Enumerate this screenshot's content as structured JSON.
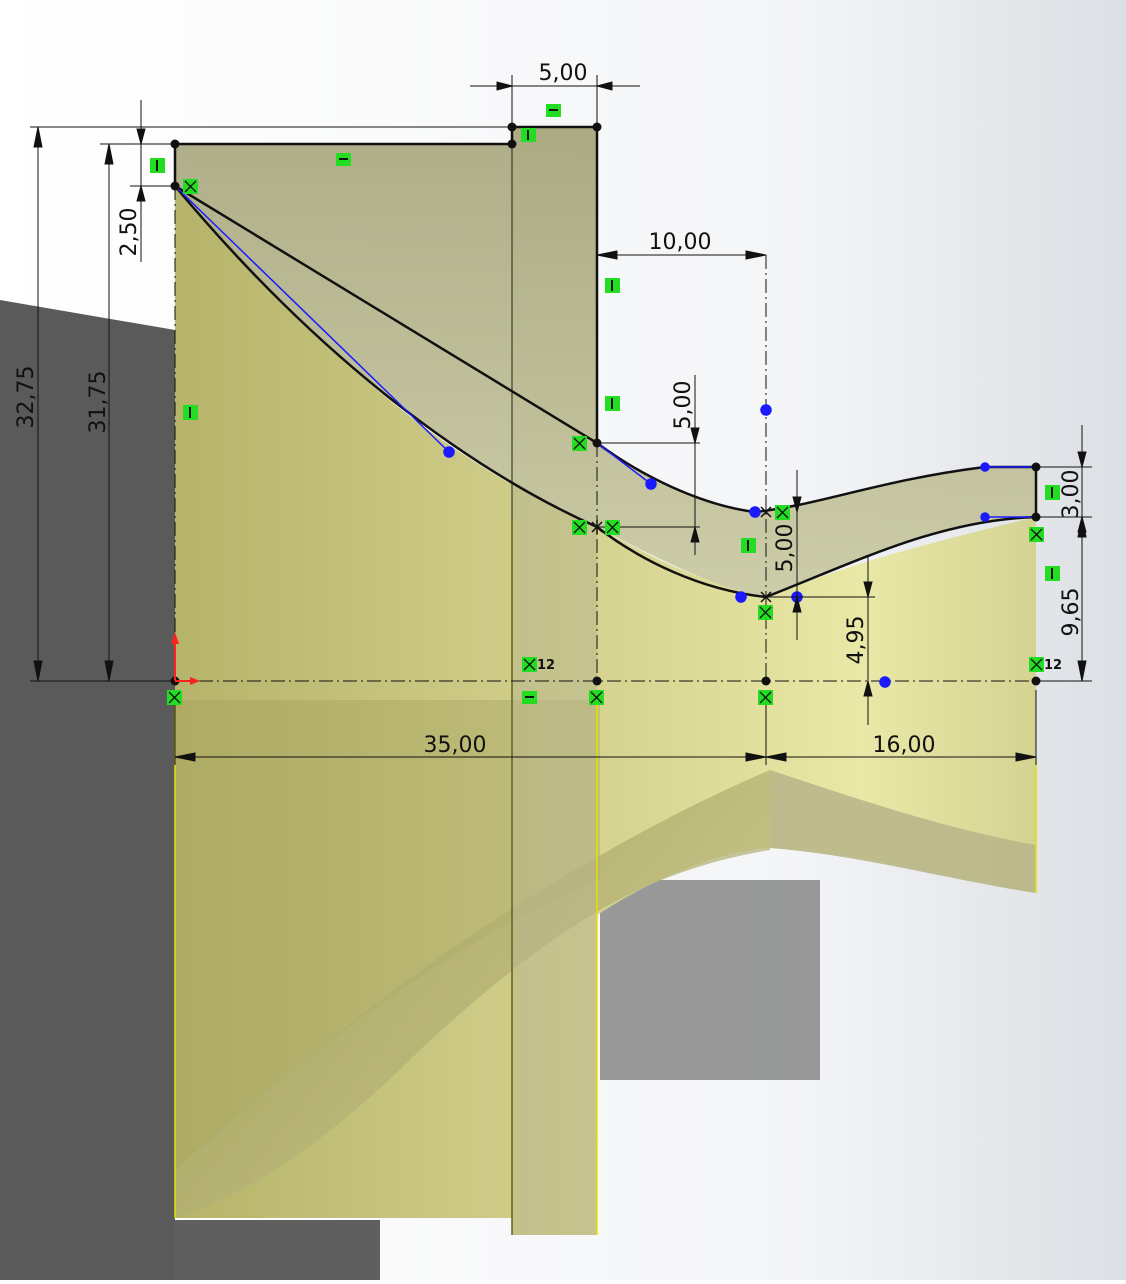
{
  "app": {
    "view": "sketch-on-revolved-part"
  },
  "colors": {
    "sketch_line": "#111111",
    "spline_handle": "#1a1aff",
    "relation_badge": "#22dd22",
    "origin_red": "#ff2020",
    "part_tint": "#c9c483"
  },
  "dimensions": {
    "d_5_00_top": "5,00",
    "d_2_50": "2,50",
    "d_32_75": "32,75",
    "d_31_75": "31,75",
    "d_10_00": "10,00",
    "d_5_00_vertical": "5,00",
    "d_5_00_throat": "5,00",
    "d_3_00": "3,00",
    "d_9_65": "9,65",
    "d_4_95": "4,95",
    "d_35_00": "35,00",
    "d_16_00": "16,00"
  },
  "relations": {
    "tangent_count_left": "12",
    "tangent_count_right": "12"
  }
}
